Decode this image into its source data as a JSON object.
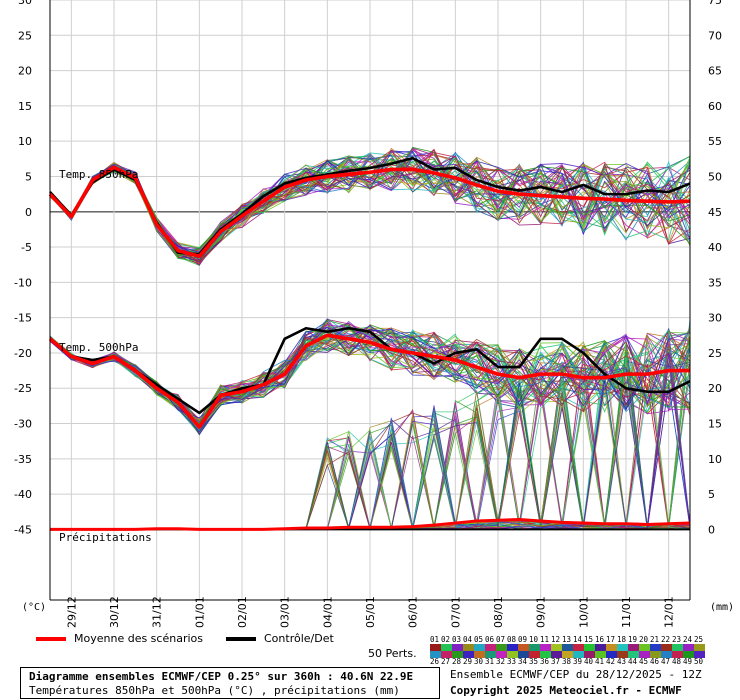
{
  "chart_data": {
    "type": "line",
    "title": "Diagramme ensembles ECMWF/CEP 0.25° sur 360h : 40.6N 22.9E",
    "subtitle": "Températures 850hPa et 500hPa (°C) , précipitations (mm)",
    "run_info": "Ensemble ECMWF/CEP du 28/12/2025 - 12Z",
    "copyright": "Copyright 2025 Meteociel.fr - ECMWF",
    "left_axis": {
      "label": "(°C)",
      "ticks": [
        30,
        25,
        20,
        15,
        10,
        5,
        0,
        -5,
        -10,
        -15,
        -20,
        -25,
        -30,
        -35,
        -40,
        -45
      ],
      "range": [
        -55,
        30
      ]
    },
    "right_axis": {
      "label": "(mm)",
      "ticks": [
        75,
        70,
        65,
        60,
        55,
        50,
        45,
        40,
        35,
        30,
        25,
        20,
        15,
        10,
        5,
        0
      ]
    },
    "x_ticks": [
      "29/12",
      "30/12",
      "31/12",
      "01/01",
      "02/01",
      "03/01",
      "04/01",
      "05/01",
      "06/01",
      "07/01",
      "08/01",
      "09/01",
      "10/01",
      "11/01",
      "12/01"
    ],
    "x_range_hours": [
      0,
      360
    ],
    "grid": true,
    "panel_labels": {
      "t850": "Temp. 850hPa",
      "t500": "Temp. 500hPa",
      "precip": "Précipitations"
    },
    "legend": {
      "mean": "Moyenne des scénarios",
      "control": "Contrôle/Det",
      "perts": "50 Perts.",
      "placement": "bottom"
    },
    "hours": [
      0,
      12,
      24,
      36,
      48,
      60,
      72,
      84,
      96,
      108,
      120,
      132,
      144,
      156,
      168,
      180,
      192,
      204,
      216,
      228,
      240,
      252,
      264,
      276,
      288,
      300,
      312,
      324,
      336,
      348,
      360
    ],
    "series": [
      {
        "name": "Moyenne des scénarios",
        "color": "#ff0000",
        "t850": [
          2.5,
          -0.7,
          4.5,
          6.3,
          4.8,
          -1.8,
          -5.5,
          -6.3,
          -2.8,
          -0.6,
          1.5,
          3.5,
          4.5,
          5.0,
          5.3,
          5.6,
          6.0,
          6.0,
          5.5,
          4.8,
          3.8,
          2.9,
          2.5,
          2.3,
          2.1,
          1.9,
          1.8,
          1.6,
          1.5,
          1.4,
          1.5
        ],
        "t500": [
          -18.0,
          -20.5,
          -21.5,
          -20.5,
          -22.5,
          -25.0,
          -27.0,
          -30.5,
          -26.0,
          -25.5,
          -24.5,
          -23.0,
          -19.0,
          -17.5,
          -18.0,
          -18.5,
          -19.5,
          -20.0,
          -20.5,
          -21.0,
          -22.0,
          -23.0,
          -23.5,
          -23.0,
          -23.0,
          -23.5,
          -23.5,
          -23.0,
          -23.0,
          -22.5,
          -22.5
        ],
        "precip": [
          0,
          0,
          0,
          0,
          0,
          0.1,
          0.1,
          0,
          0,
          0,
          0,
          0.1,
          0.2,
          0.2,
          0.3,
          0.3,
          0.3,
          0.4,
          0.6,
          0.9,
          1.2,
          1.3,
          1.4,
          1.2,
          1.0,
          0.9,
          0.8,
          0.8,
          0.7,
          0.8,
          0.9
        ]
      },
      {
        "name": "Contrôle/Det",
        "color": "#000000",
        "t850": [
          2.8,
          -0.5,
          4.2,
          6.0,
          4.5,
          -1.5,
          -5.8,
          -6.0,
          -2.5,
          -0.3,
          2.2,
          4.0,
          4.8,
          5.3,
          5.8,
          6.2,
          6.8,
          7.6,
          6.0,
          6.2,
          4.5,
          3.5,
          3.0,
          3.5,
          2.8,
          3.8,
          2.5,
          2.5,
          3.0,
          2.8,
          4.0
        ],
        "t500": [
          -18.0,
          -20.5,
          -21.0,
          -20.5,
          -22.5,
          -24.5,
          -26.5,
          -28.5,
          -26.0,
          -25.0,
          -24.5,
          -18.0,
          -16.5,
          -17.0,
          -16.5,
          -17.0,
          -19.5,
          -20.0,
          -21.5,
          -20.0,
          -19.5,
          -22.0,
          -22.0,
          -18.0,
          -18.0,
          -20.0,
          -23.0,
          -25.0,
          -25.5,
          -25.5,
          -24.0
        ]
      },
      {
        "name": "50 Perts.",
        "count": 50
      }
    ]
  }
}
